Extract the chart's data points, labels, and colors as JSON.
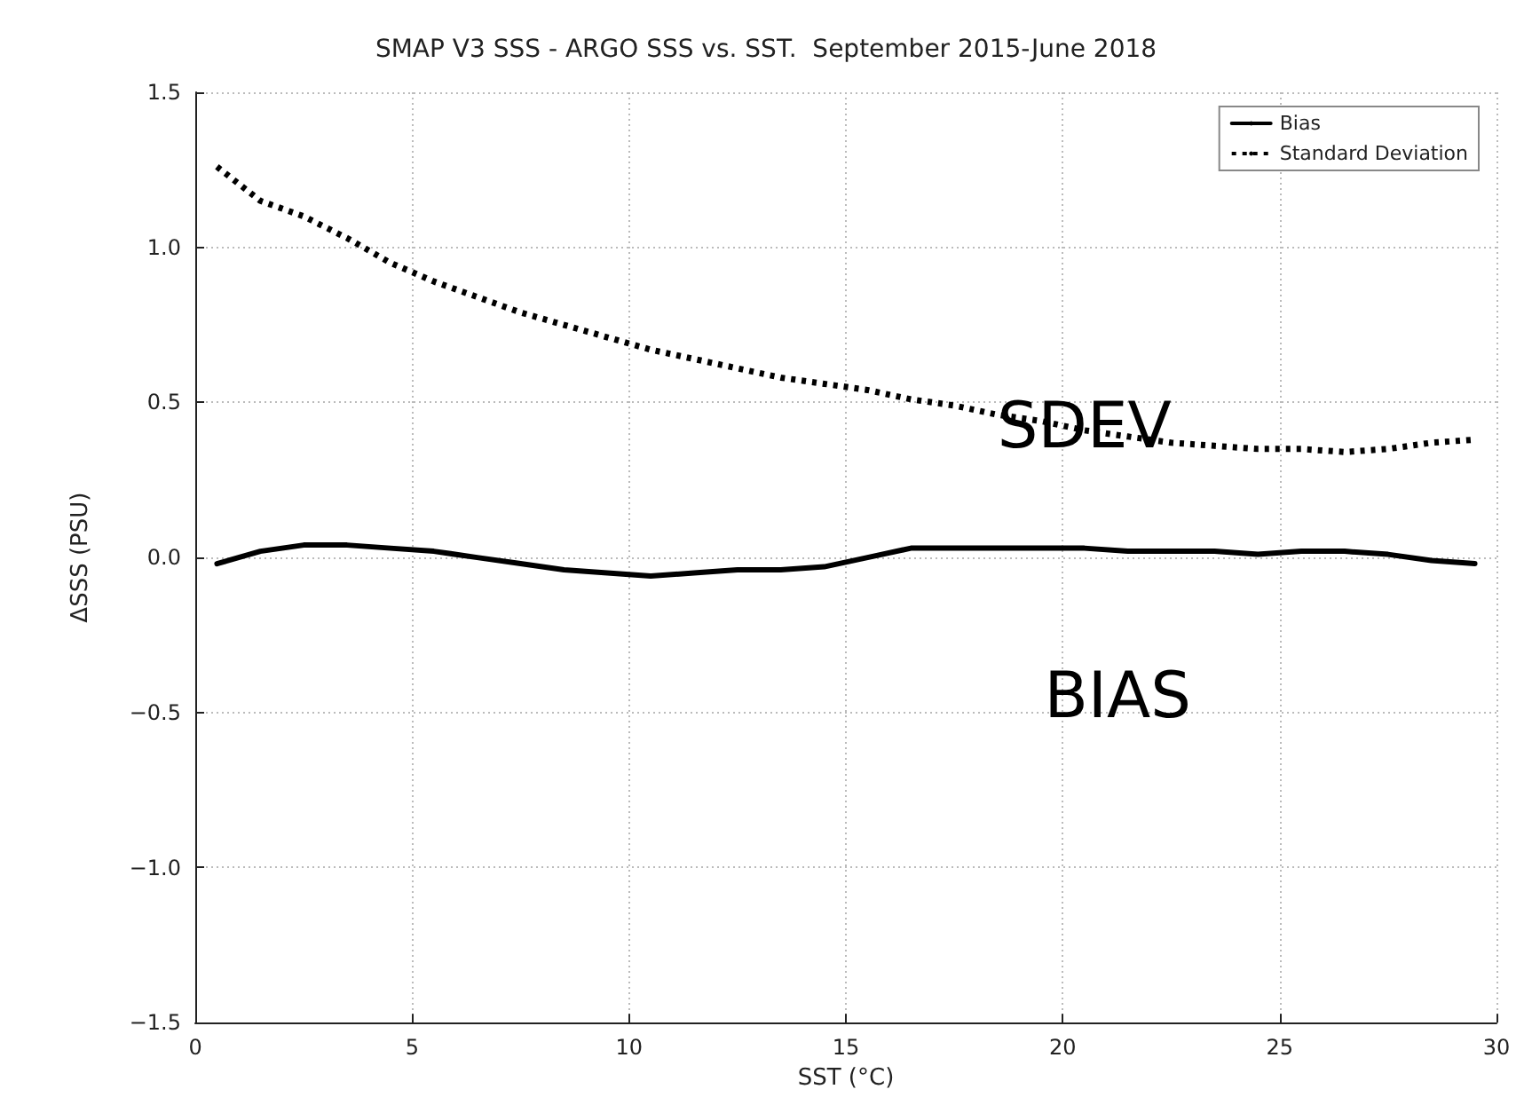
{
  "chart_data": {
    "type": "line",
    "title": "SMAP V3 SSS - ARGO SSS vs. SST.  September 2015-June 2018",
    "xlabel": "SST (°C)",
    "ylabel": "ΔSSS (PSU)",
    "x": [
      0.5,
      1.5,
      2.5,
      3.5,
      4.5,
      5.5,
      6.5,
      7.5,
      8.5,
      9.5,
      10.5,
      11.5,
      12.5,
      13.5,
      14.5,
      15.5,
      16.5,
      17.5,
      18.5,
      19.5,
      20.5,
      21.5,
      22.5,
      23.5,
      24.5,
      25.5,
      26.5,
      27.5,
      28.5,
      29.5
    ],
    "series": [
      {
        "name": "Bias",
        "color": "#000000",
        "line_style": "solid",
        "values": [
          -0.02,
          0.02,
          0.04,
          0.04,
          0.03,
          0.02,
          0.0,
          -0.02,
          -0.04,
          -0.05,
          -0.06,
          -0.05,
          -0.04,
          -0.04,
          -0.03,
          0.0,
          0.03,
          0.03,
          0.03,
          0.03,
          0.03,
          0.02,
          0.02,
          0.02,
          0.01,
          0.02,
          0.02,
          0.01,
          -0.01,
          -0.02
        ]
      },
      {
        "name": "Standard Deviation",
        "color": "#000000",
        "line_style": "dotted",
        "values": [
          1.26,
          1.15,
          1.1,
          1.03,
          0.95,
          0.89,
          0.84,
          0.79,
          0.75,
          0.71,
          0.67,
          0.64,
          0.61,
          0.58,
          0.56,
          0.54,
          0.51,
          0.49,
          0.46,
          0.44,
          0.41,
          0.39,
          0.37,
          0.36,
          0.35,
          0.35,
          0.34,
          0.35,
          0.37,
          0.38
        ]
      }
    ],
    "xlim": [
      0,
      30
    ],
    "xticks": [
      0,
      5,
      10,
      15,
      20,
      25,
      30
    ],
    "ylim": [
      -1.5,
      1.5
    ],
    "yticks": [
      -1.5,
      {
        "value": -1,
        "label": "−1.0"
      },
      -0.5,
      {
        "value": 0,
        "label": "0.0"
      },
      0.5,
      {
        "value": 1,
        "label": "1.0"
      },
      1.5
    ],
    "annotations": [
      {
        "text": "SDEV",
        "x": 20.5,
        "y": 0.42
      },
      "BIAS"
    ],
    "grid": true,
    "legend": "top right",
    "marker": "none"
  }
}
